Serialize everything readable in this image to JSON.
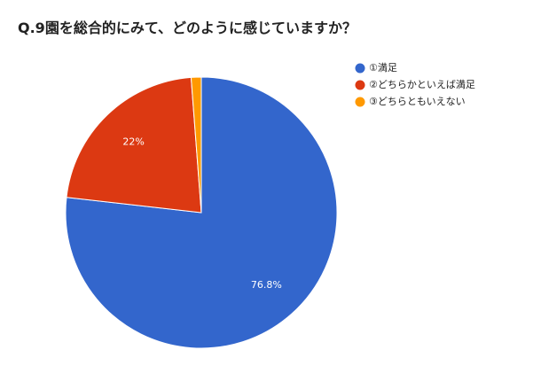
{
  "chart_data": {
    "type": "pie",
    "title": "Q.9園を総合的にみて、どのように感じていますか？",
    "categories": [
      "①満足",
      "②どちらかといえば満足",
      "③どちらともいえない"
    ],
    "values": [
      76.8,
      22,
      1.2
    ],
    "data_labels": [
      "76.8%",
      "22%",
      ""
    ],
    "colors": [
      "#3366cc",
      "#dc3912",
      "#ff9900"
    ],
    "legend": "right",
    "start": "top, clockwise"
  }
}
